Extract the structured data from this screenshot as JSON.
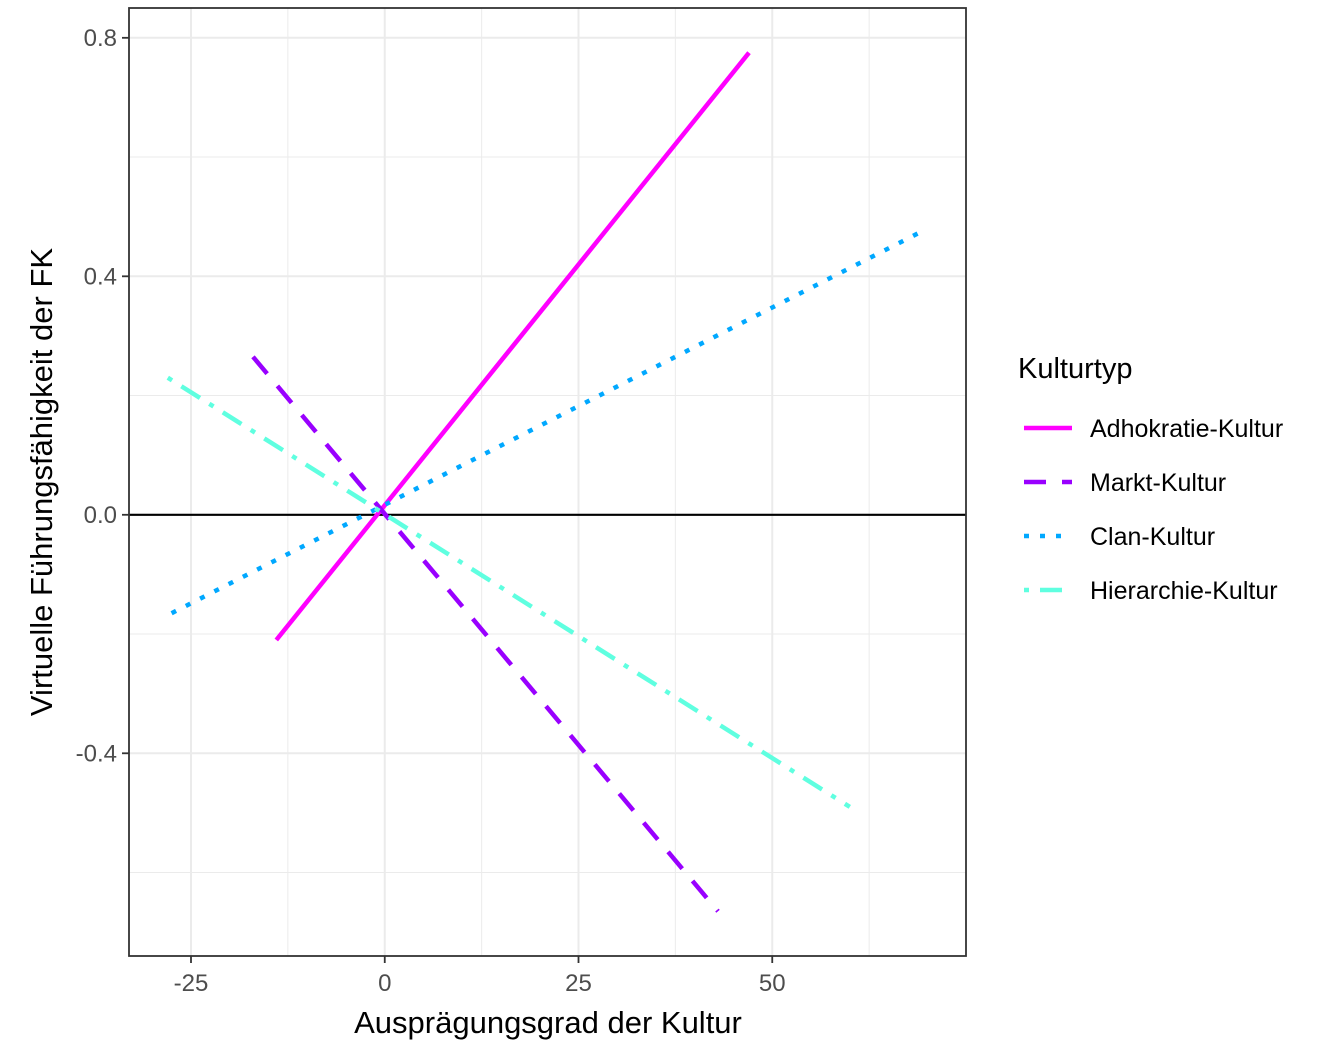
{
  "chart_data": {
    "type": "line",
    "title": "",
    "xlabel": "Ausprägungsgrad der Kultur",
    "ylabel": "Virtuelle Führungsfähigkeit der FK",
    "xlim": [
      -33,
      75
    ],
    "ylim": [
      -0.74,
      0.85
    ],
    "xticks": [
      -25,
      0,
      25,
      50
    ],
    "xtick_labels": [
      "-25",
      "0",
      "25",
      "50"
    ],
    "yticks": [
      -0.4,
      0.0,
      0.4,
      0.8
    ],
    "ytick_labels": [
      "-0.4",
      "0.0",
      "0.4",
      "0.8"
    ],
    "x_minor_gridlines": [
      -12.5,
      12.5,
      37.5,
      62.5
    ],
    "y_minor_gridlines": [
      -0.6,
      -0.2,
      0.2,
      0.6
    ],
    "reference_hline": 0.0,
    "grid": true,
    "legend": {
      "title": "Kulturtyp",
      "position": "right"
    },
    "series": [
      {
        "name": "Adhokratie-Kultur",
        "color": "#FF00FF",
        "dash": "solid",
        "x": [
          -14,
          47
        ],
        "y": [
          -0.21,
          0.775
        ]
      },
      {
        "name": "Markt-Kultur",
        "color": "#9900FF",
        "dash": "dashed",
        "x": [
          -17,
          43
        ],
        "y": [
          0.265,
          -0.665
        ]
      },
      {
        "name": "Clan-Kultur",
        "color": "#00A8FF",
        "dash": "dotted",
        "x": [
          -27.5,
          70
        ],
        "y": [
          -0.165,
          0.48
        ]
      },
      {
        "name": "Hierarchie-Kultur",
        "color": "#5FFFE0",
        "dash": "dotdash",
        "x": [
          -28,
          60
        ],
        "y": [
          0.23,
          -0.49
        ]
      }
    ]
  }
}
